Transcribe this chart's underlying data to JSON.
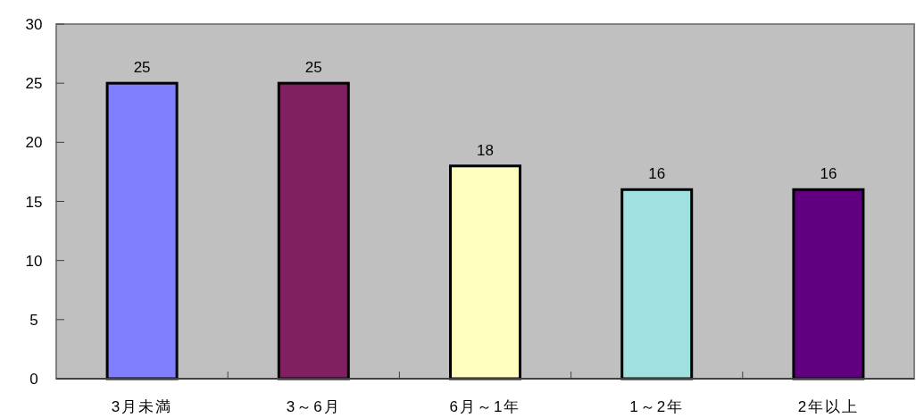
{
  "chart_data": {
    "type": "bar",
    "categories": [
      "3月未満",
      "3～6月",
      "6月～1年",
      "1～2年",
      "2年以上"
    ],
    "values": [
      25,
      25,
      18,
      16,
      16
    ],
    "colors": [
      "#8080ff",
      "#802060",
      "#ffffc0",
      "#a0e0e0",
      "#600080"
    ],
    "ylim": [
      0,
      30
    ],
    "yticks": [
      0,
      5,
      10,
      15,
      20,
      25,
      30
    ],
    "data_labels": true,
    "grid": false,
    "legend": false
  }
}
